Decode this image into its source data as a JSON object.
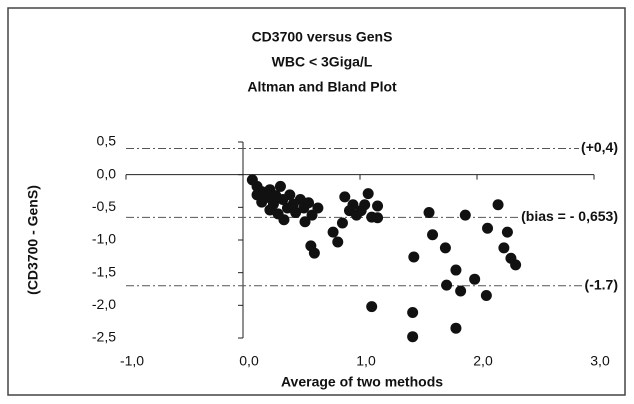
{
  "chart_data": {
    "type": "scatter",
    "title": [
      "CD3700 versus GenS",
      "WBC < 3Giga/L",
      "Altman and Bland Plot"
    ],
    "x_label": "Average of two methods",
    "y_label": "(CD3700 - GenS)",
    "xlim": [
      -1,
      3
    ],
    "ylim": [
      -2.5,
      0.5
    ],
    "xticks": [
      {
        "value": -1,
        "label": "-1,0"
      },
      {
        "value": 0,
        "label": "0,0"
      },
      {
        "value": 1,
        "label": "1,0"
      },
      {
        "value": 2,
        "label": "2,0"
      },
      {
        "value": 3,
        "label": "3,0"
      }
    ],
    "yticks": [
      {
        "value": 0.5,
        "label": "0,5"
      },
      {
        "value": 0,
        "label": "0,0"
      },
      {
        "value": -0.5,
        "label": "-0,5"
      },
      {
        "value": -1,
        "label": "-1,0"
      },
      {
        "value": -1.5,
        "label": "-1,5"
      },
      {
        "value": -2,
        "label": "-2,0"
      },
      {
        "value": -2.5,
        "label": "-2,5"
      }
    ],
    "reference_lines": [
      {
        "value": 0.4,
        "label": "(+0,4)"
      },
      {
        "value": -0.653,
        "label": "(bias = - 0,653)"
      },
      {
        "value": -1.7,
        "label": "(-1.7)"
      }
    ],
    "color": "#111111",
    "x": [
      0.08,
      0.12,
      0.16,
      0.2,
      0.23,
      0.26,
      0.28,
      0.32,
      0.34,
      0.38,
      0.4,
      0.43,
      0.45,
      0.49,
      0.52,
      0.56,
      0.59,
      0.64,
      0.12,
      0.16,
      0.23,
      0.3,
      0.35,
      0.53,
      0.58,
      0.61,
      0.77,
      0.81,
      0.85,
      0.87,
      0.91,
      0.94,
      0.97,
      1.01,
      1.04,
      1.07,
      1.1,
      1.15,
      1.15,
      1.1,
      1.45,
      1.45,
      1.46,
      1.59,
      1.62,
      1.73,
      1.74,
      1.82,
      1.86,
      1.9,
      1.98,
      2.08,
      2.09,
      2.18,
      2.23,
      2.26,
      2.29,
      2.33,
      1.82
    ],
    "values": [
      -0.08,
      -0.18,
      -0.26,
      -0.35,
      -0.23,
      -0.45,
      -0.32,
      -0.18,
      -0.38,
      -0.51,
      -0.31,
      -0.45,
      -0.58,
      -0.38,
      -0.51,
      -0.43,
      -0.62,
      -0.51,
      -0.31,
      -0.42,
      -0.54,
      -0.6,
      -0.69,
      -0.72,
      -1.09,
      -1.2,
      -0.88,
      -1.03,
      -0.74,
      -0.34,
      -0.55,
      -0.46,
      -0.62,
      -0.55,
      -0.46,
      -0.29,
      -0.65,
      -0.48,
      -0.66,
      -2.02,
      -2.11,
      -2.48,
      -1.26,
      -0.58,
      -0.92,
      -1.12,
      -1.69,
      -1.46,
      -1.78,
      -0.62,
      -1.6,
      -1.85,
      -0.82,
      -0.46,
      -1.12,
      -0.88,
      -1.28,
      -1.38,
      -2.35
    ]
  }
}
